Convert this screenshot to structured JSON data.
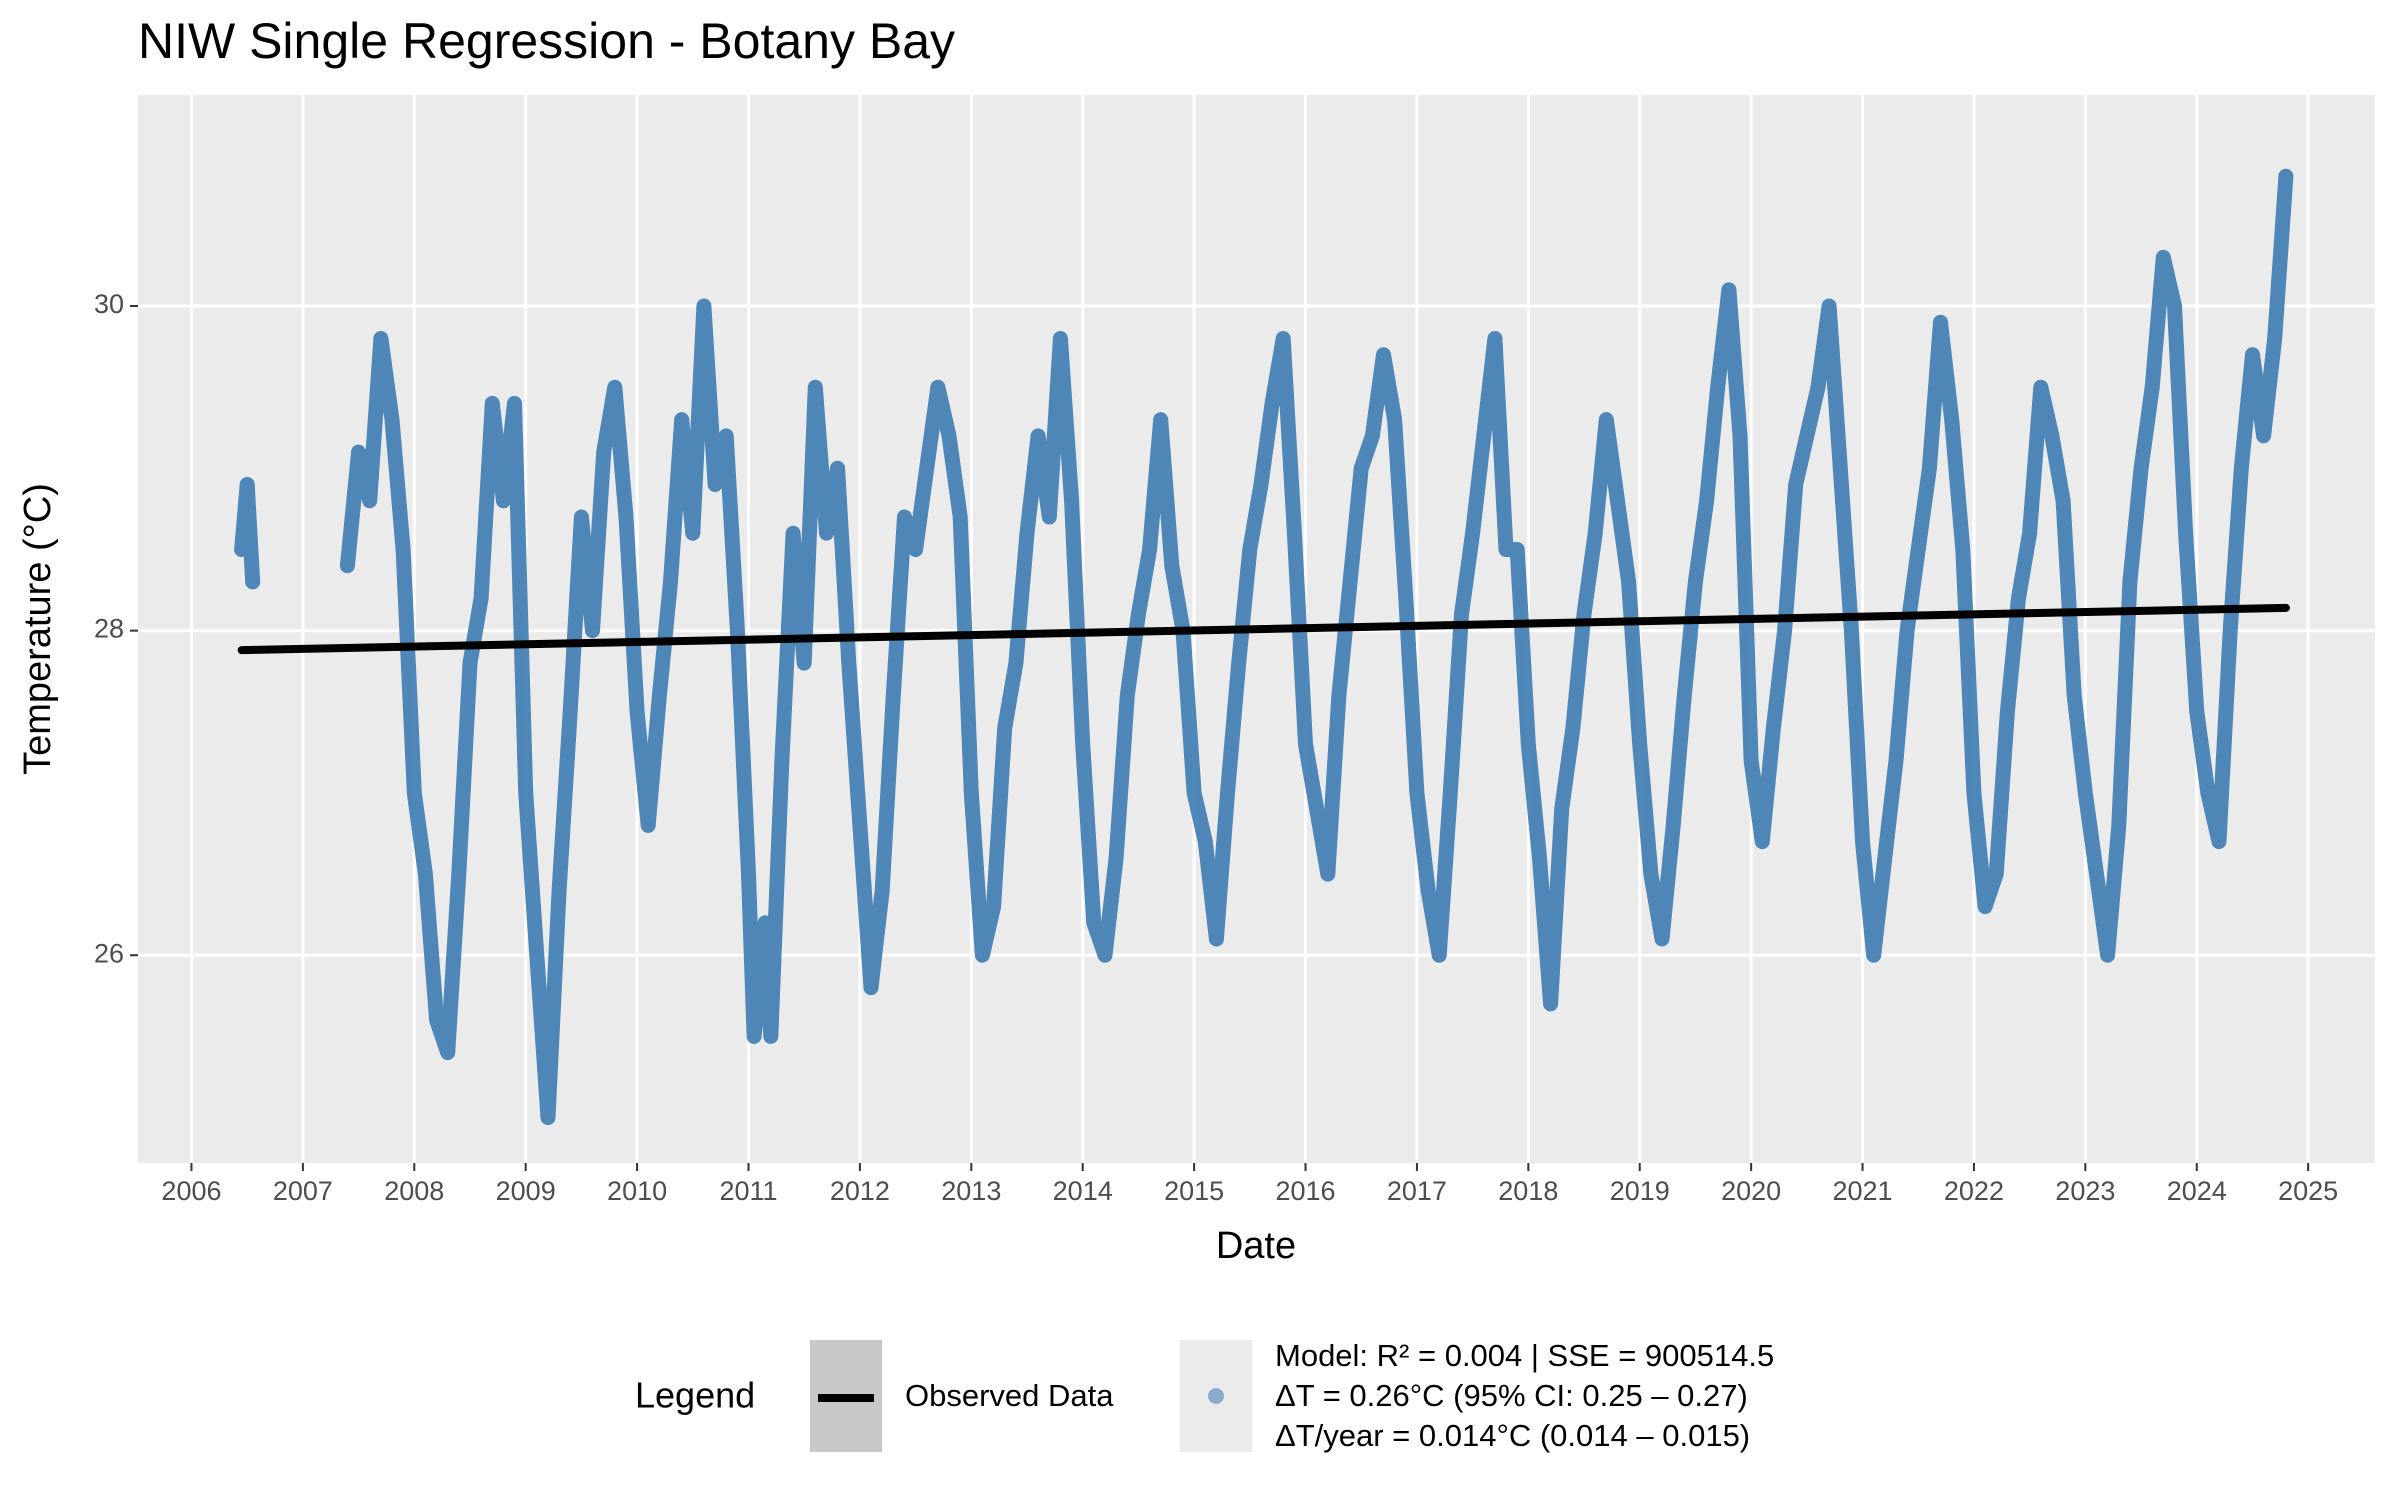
{
  "chart_data": {
    "type": "line",
    "title": "NIW Single Regression - Botany Bay",
    "xlabel": "Date",
    "ylabel": "Temperature (°C)",
    "legend_title": "Legend",
    "xlim": [
      2005.52,
      2025.6
    ],
    "xticks": [
      2006,
      2007,
      2008,
      2009,
      2010,
      2011,
      2012,
      2013,
      2014,
      2015,
      2016,
      2017,
      2018,
      2019,
      2020,
      2021,
      2022,
      2023,
      2024,
      2025
    ],
    "ylim": [
      24.72,
      31.3
    ],
    "yticks": [
      26,
      28,
      30
    ],
    "grid": true,
    "series": [
      {
        "name": [
          "Model: R² = 0.004 | SSE = 900514.5",
          "ΔT = 0.26°C (95% CI: 0.25 – 0.27)",
          "ΔT/year = 0.014°C (0.014 – 0.015)"
        ],
        "color": "#4682b4",
        "x": [
          2006.45,
          2006.5,
          2006.55,
          2007.0,
          2007.4,
          2007.5,
          2007.6,
          2007.7,
          2007.8,
          2007.9,
          2008.0,
          2008.1,
          2008.2,
          2008.3,
          2008.4,
          2008.5,
          2008.6,
          2008.7,
          2008.8,
          2008.9,
          2009.0,
          2009.1,
          2009.2,
          2009.3,
          2009.4,
          2009.5,
          2009.6,
          2009.7,
          2009.8,
          2009.9,
          2010.0,
          2010.1,
          2010.2,
          2010.3,
          2010.4,
          2010.5,
          2010.6,
          2010.7,
          2010.8,
          2010.9,
          2011.0,
          2011.05,
          2011.15,
          2011.2,
          2011.3,
          2011.4,
          2011.5,
          2011.6,
          2011.7,
          2011.8,
          2011.9,
          2012.0,
          2012.1,
          2012.2,
          2012.3,
          2012.4,
          2012.5,
          2012.6,
          2012.7,
          2012.8,
          2012.9,
          2013.0,
          2013.1,
          2013.2,
          2013.3,
          2013.4,
          2013.5,
          2013.6,
          2013.7,
          2013.8,
          2013.9,
          2014.0,
          2014.1,
          2014.2,
          2014.3,
          2014.4,
          2014.5,
          2014.6,
          2014.7,
          2014.8,
          2014.9,
          2015.0,
          2015.1,
          2015.2,
          2015.3,
          2015.4,
          2015.5,
          2015.6,
          2015.7,
          2015.8,
          2015.9,
          2016.0,
          2016.1,
          2016.2,
          2016.3,
          2016.4,
          2016.5,
          2016.6,
          2016.7,
          2016.8,
          2016.9,
          2017.0,
          2017.1,
          2017.2,
          2017.3,
          2017.4,
          2017.5,
          2017.6,
          2017.7,
          2017.8,
          2017.9,
          2018.0,
          2018.1,
          2018.2,
          2018.3,
          2018.4,
          2018.5,
          2018.6,
          2018.7,
          2018.8,
          2018.9,
          2019.0,
          2019.1,
          2019.2,
          2019.3,
          2019.4,
          2019.5,
          2019.6,
          2019.7,
          2019.8,
          2019.9,
          2020.0,
          2020.1,
          2020.2,
          2020.3,
          2020.4,
          2020.5,
          2020.6,
          2020.7,
          2020.8,
          2020.9,
          2021.0,
          2021.1,
          2021.2,
          2021.3,
          2021.4,
          2021.5,
          2021.6,
          2021.7,
          2021.8,
          2021.9,
          2022.0,
          2022.1,
          2022.2,
          2022.3,
          2022.4,
          2022.5,
          2022.6,
          2022.7,
          2022.8,
          2022.9,
          2023.0,
          2023.1,
          2023.2,
          2023.3,
          2023.4,
          2023.5,
          2023.6,
          2023.7,
          2023.8,
          2023.9,
          2024.0,
          2024.1,
          2024.2,
          2024.3,
          2024.4,
          2024.5,
          2024.6,
          2024.7,
          2024.8
        ],
        "values": [
          28.5,
          28.9,
          28.3,
          null,
          28.4,
          29.1,
          28.8,
          29.8,
          29.3,
          28.5,
          27.0,
          26.5,
          25.6,
          25.4,
          26.5,
          27.8,
          28.2,
          29.4,
          28.8,
          29.4,
          27.0,
          26.0,
          25.0,
          26.4,
          27.5,
          28.7,
          28.0,
          29.1,
          29.5,
          28.7,
          27.5,
          26.8,
          27.6,
          28.3,
          29.3,
          28.6,
          30.0,
          28.9,
          29.2,
          28.0,
          26.5,
          25.5,
          26.2,
          25.5,
          27.2,
          28.6,
          27.8,
          29.5,
          28.6,
          29.0,
          27.8,
          26.8,
          25.8,
          26.4,
          27.6,
          28.7,
          28.5,
          29.0,
          29.5,
          29.2,
          28.7,
          27.0,
          26.0,
          26.3,
          27.4,
          27.8,
          28.6,
          29.2,
          28.7,
          29.8,
          28.8,
          27.3,
          26.2,
          26.0,
          26.6,
          27.6,
          28.1,
          28.5,
          29.3,
          28.4,
          28.0,
          27.0,
          26.7,
          26.1,
          27.0,
          27.8,
          28.5,
          28.9,
          29.4,
          29.8,
          28.6,
          27.3,
          26.9,
          26.5,
          27.6,
          28.3,
          29.0,
          29.2,
          29.7,
          29.3,
          28.2,
          27.0,
          26.4,
          26.0,
          27.0,
          28.1,
          28.6,
          29.2,
          29.8,
          28.5,
          28.5,
          27.3,
          26.6,
          25.7,
          26.9,
          27.4,
          28.1,
          28.6,
          29.3,
          28.8,
          28.3,
          27.3,
          26.5,
          26.1,
          26.8,
          27.6,
          28.3,
          28.8,
          29.5,
          30.1,
          29.2,
          27.2,
          26.7,
          27.4,
          28.0,
          28.9,
          29.2,
          29.5,
          30.0,
          29.0,
          28.0,
          26.7,
          26.0,
          26.6,
          27.2,
          28.0,
          28.5,
          29.0,
          29.9,
          29.3,
          28.5,
          27.0,
          26.3,
          26.5,
          27.5,
          28.2,
          28.6,
          29.5,
          29.2,
          28.8,
          27.6,
          27.0,
          26.5,
          26.0,
          26.8,
          28.3,
          29.0,
          29.5,
          30.3,
          30.0,
          28.6,
          27.5,
          27.0,
          26.7,
          28.0,
          29.0,
          29.7,
          29.2,
          29.8,
          30.8
        ]
      },
      {
        "name": "Observed Data",
        "color": "#000000",
        "x": [
          2006.45,
          2024.8
        ],
        "values": [
          27.88,
          28.14
        ]
      }
    ]
  }
}
